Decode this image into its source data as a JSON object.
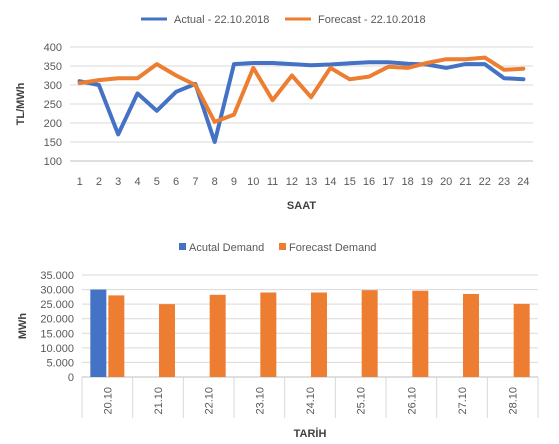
{
  "chart_data": [
    {
      "type": "line",
      "title": "",
      "xlabel": "SAAT",
      "ylabel": "TL/MWh",
      "ylim": [
        100,
        400
      ],
      "yticks": [
        100,
        150,
        200,
        250,
        300,
        350,
        400
      ],
      "grid": true,
      "legend": "top",
      "x": [
        "1",
        "2",
        "3",
        "4",
        "5",
        "6",
        "7",
        "8",
        "9",
        "10",
        "11",
        "12",
        "13",
        "14",
        "15",
        "16",
        "17",
        "18",
        "19",
        "20",
        "21",
        "22",
        "23",
        "24"
      ],
      "series": [
        {
          "name": "Actual - 22.10.2018",
          "color": "#4472c4",
          "values": [
            310,
            300,
            170,
            278,
            232,
            282,
            303,
            150,
            355,
            358,
            358,
            355,
            352,
            354,
            357,
            360,
            360,
            356,
            354,
            345,
            355,
            355,
            318,
            315
          ]
        },
        {
          "name": "Forecast - 22.10.2018",
          "color": "#ed7d31",
          "values": [
            305,
            313,
            318,
            318,
            355,
            325,
            300,
            203,
            222,
            345,
            260,
            325,
            268,
            345,
            315,
            322,
            348,
            345,
            358,
            368,
            368,
            372,
            340,
            343
          ]
        }
      ]
    },
    {
      "type": "bar",
      "title": "",
      "xlabel": "TARİH",
      "ylabel": "MWh",
      "ylim": [
        0,
        35000
      ],
      "ytick_labels": [
        "0",
        "5.000",
        "10.000",
        "15.000",
        "20.000",
        "25.000",
        "30.000",
        "35.000"
      ],
      "ytick_values": [
        0,
        5000,
        10000,
        15000,
        20000,
        25000,
        30000,
        35000
      ],
      "grid": true,
      "legend": "top",
      "categories": [
        "20.10",
        "21.10",
        "22.10",
        "23.10",
        "24.10",
        "25.10",
        "26.10",
        "27.10",
        "28.10"
      ],
      "series": [
        {
          "name": "Acutal Demand",
          "color": "#4472c4",
          "values": [
            30000,
            null,
            null,
            null,
            null,
            null,
            null,
            null,
            null
          ]
        },
        {
          "name": "Forecast Demand",
          "color": "#ed7d31",
          "values": [
            28000,
            25000,
            28200,
            29000,
            29000,
            29800,
            29600,
            28500,
            25100
          ]
        }
      ]
    }
  ]
}
